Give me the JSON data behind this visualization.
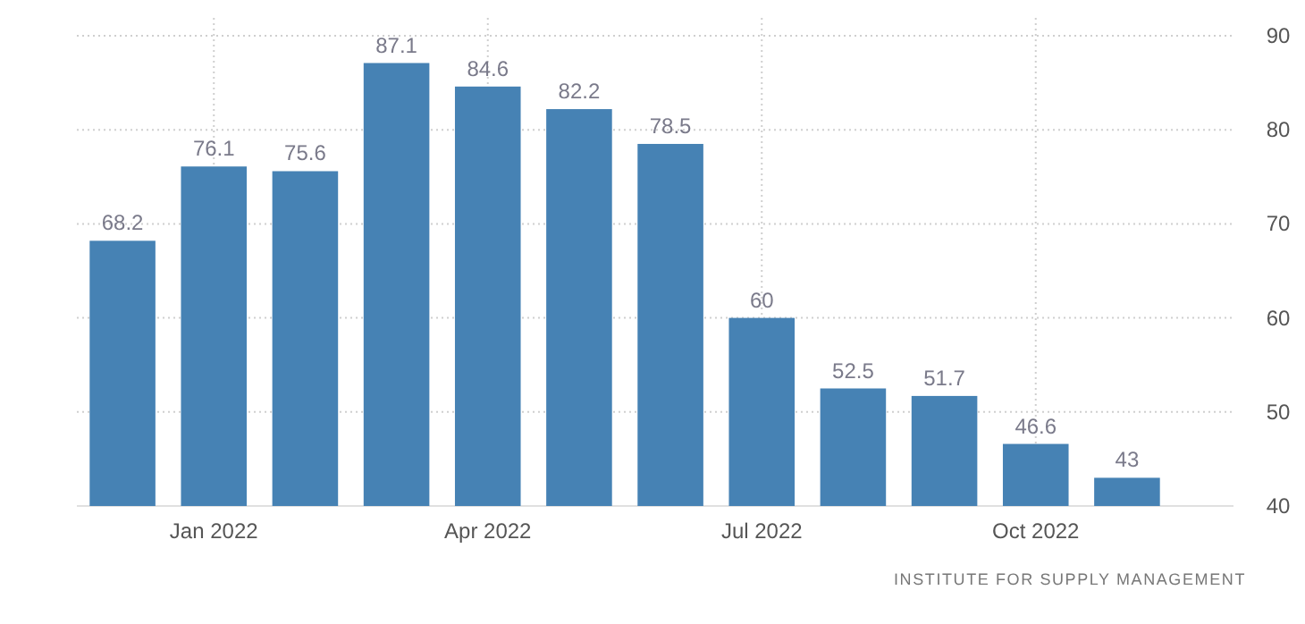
{
  "chart_data": {
    "type": "bar",
    "categories": [
      null,
      "Jan 2022",
      null,
      null,
      "Apr 2022",
      null,
      null,
      "Jul 2022",
      null,
      null,
      "Oct 2022",
      null
    ],
    "values": [
      68.2,
      76.1,
      75.6,
      87.1,
      84.6,
      82.2,
      78.5,
      60,
      52.5,
      51.7,
      46.6,
      43
    ],
    "color": "#4682b4",
    "ylim": [
      40,
      90
    ],
    "yticks": [
      40,
      50,
      60,
      70,
      80,
      90
    ],
    "grid": true,
    "data_labels": true,
    "annotations": [
      "INSTITUTE FOR SUPPLY MANAGEMENT"
    ]
  }
}
